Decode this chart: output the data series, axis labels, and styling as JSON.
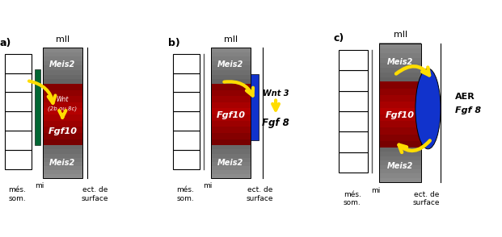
{
  "fig_w": 6.21,
  "fig_h": 2.94,
  "dpi": 100,
  "bg_color": "#ffffff",
  "gray_dark": "#444444",
  "gray_mid": "#777777",
  "red_color": "#cc0000",
  "green_color": "#006633",
  "blue_color": "#1133cc",
  "yellow_color": "#ffdd00",
  "black": "#000000",
  "white": "#ffffff",
  "mll_label": "mll",
  "meis2_label": "Meis2",
  "fgf10_label": "Fgf10",
  "wnt_a_label1": "Wnt",
  "wnt_a_label2": "(2b ou 8c)",
  "wnt3_label": "Wnt 3",
  "fgf8_label": "Fgf 8",
  "aer_label": "AER",
  "aer_fgf8_label": "Fgf 8",
  "mes_label": "més.\nsom.",
  "mi_label": "mi",
  "ect_label": "ect. de\nsurface"
}
